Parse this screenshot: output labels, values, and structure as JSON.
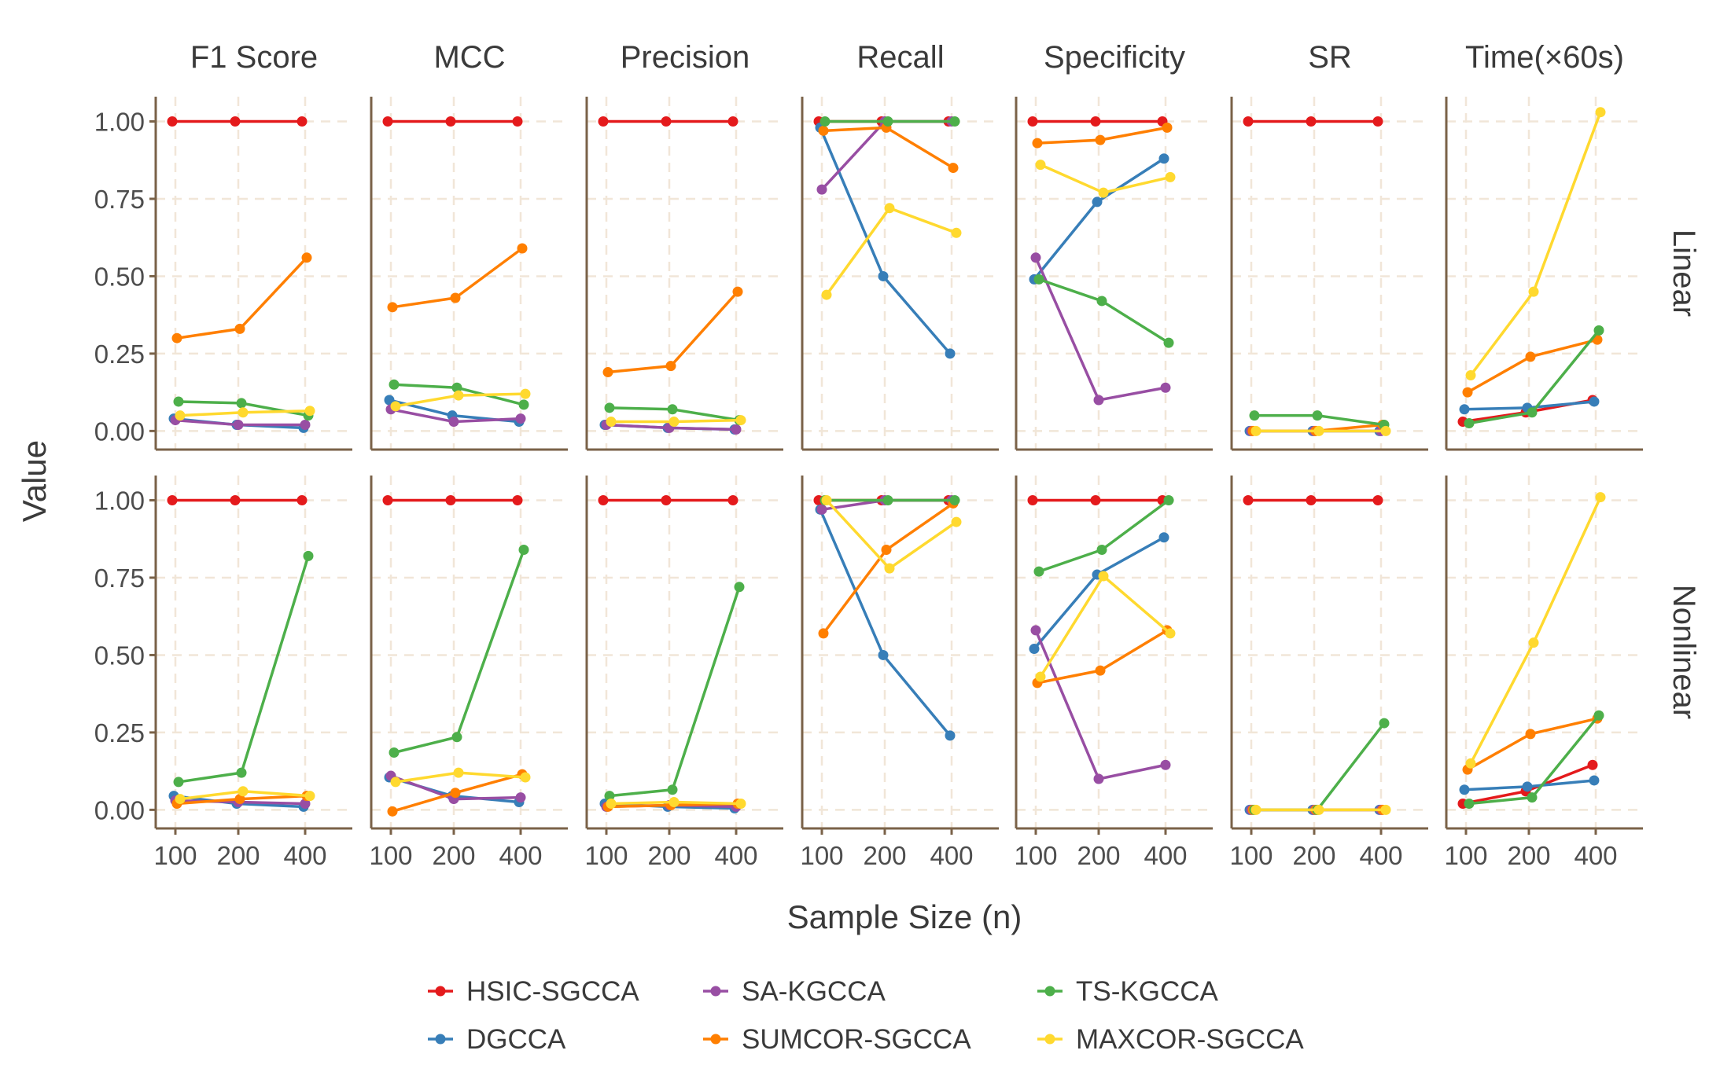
{
  "chart_data": {
    "type": "line",
    "x": [
      100,
      200,
      400
    ],
    "xlabel": "Sample Size (n)",
    "ylabel": "Value",
    "ylim": [
      -0.06,
      1.08
    ],
    "xticks": [
      "100",
      "200",
      "400"
    ],
    "yticks": [
      "0.00",
      "0.25",
      "0.50",
      "0.75",
      "1.00"
    ],
    "grid": true,
    "legend_position": "bottom",
    "panel_columns": [
      "F1 Score",
      "MCC",
      "Precision",
      "Recall",
      "Specificity",
      "SR",
      "Time(×60s)"
    ],
    "panel_rows": [
      "Linear",
      "Nonlinear"
    ],
    "series": [
      {
        "name": "HSIC-SGCCA",
        "color": "#E41A1C"
      },
      {
        "name": "DGCCA",
        "color": "#377EB8"
      },
      {
        "name": "SA-KGCCA",
        "color": "#984EA3"
      },
      {
        "name": "SUMCOR-SGCCA",
        "color": "#FF7F00"
      },
      {
        "name": "TS-KGCCA",
        "color": "#4DAF4A"
      },
      {
        "name": "MAXCOR-SGCCA",
        "color": "#FFD92F"
      }
    ],
    "values": {
      "Linear": {
        "F1 Score": [
          [
            1,
            1,
            1
          ],
          [
            0.04,
            0.02,
            0.01
          ],
          [
            0.035,
            0.02,
            0.02
          ],
          [
            0.3,
            0.33,
            0.56
          ],
          [
            0.095,
            0.09,
            0.05
          ],
          [
            0.05,
            0.06,
            0.065
          ]
        ],
        "MCC": [
          [
            1,
            1,
            1
          ],
          [
            0.1,
            0.05,
            0.03
          ],
          [
            0.07,
            0.03,
            0.04
          ],
          [
            0.4,
            0.43,
            0.59
          ],
          [
            0.15,
            0.14,
            0.085
          ],
          [
            0.08,
            0.115,
            0.12
          ]
        ],
        "Precision": [
          [
            1,
            1,
            1
          ],
          [
            0.02,
            0.01,
            0.005
          ],
          [
            0.02,
            0.01,
            0.005
          ],
          [
            0.19,
            0.21,
            0.45
          ],
          [
            0.075,
            0.07,
            0.035
          ],
          [
            0.03,
            0.03,
            0.035
          ]
        ],
        "Recall": [
          [
            1,
            1,
            1
          ],
          [
            0.98,
            0.5,
            0.25
          ],
          [
            0.78,
            1,
            1
          ],
          [
            0.97,
            0.98,
            0.85
          ],
          [
            1,
            1,
            1
          ],
          [
            0.44,
            0.72,
            0.64
          ]
        ],
        "Specificity": [
          [
            1,
            1,
            1
          ],
          [
            0.49,
            0.74,
            0.88
          ],
          [
            0.56,
            0.1,
            0.14
          ],
          [
            0.93,
            0.94,
            0.98
          ],
          [
            0.49,
            0.42,
            0.285
          ],
          [
            0.86,
            0.77,
            0.82
          ]
        ],
        "SR": [
          [
            1,
            1,
            1
          ],
          [
            0,
            0,
            0
          ],
          [
            0,
            0,
            0
          ],
          [
            0,
            0,
            0.02
          ],
          [
            0.05,
            0.05,
            0.02
          ],
          [
            0,
            0,
            0
          ]
        ],
        "Time(×60s)": [
          [
            0.03,
            0.06,
            0.1
          ],
          [
            0.07,
            0.075,
            0.095
          ],
          [
            null,
            null,
            null
          ],
          [
            0.125,
            0.24,
            0.295
          ],
          [
            0.025,
            0.06,
            0.325
          ],
          [
            0.18,
            0.45,
            1.03
          ]
        ]
      },
      "Nonlinear": {
        "F1 Score": [
          [
            1,
            1,
            1
          ],
          [
            0.045,
            0.02,
            0.01
          ],
          [
            0.03,
            0.025,
            0.02
          ],
          [
            0.02,
            0.035,
            0.045
          ],
          [
            0.09,
            0.12,
            0.82
          ],
          [
            0.035,
            0.06,
            0.045
          ]
        ],
        "MCC": [
          [
            1,
            1,
            1
          ],
          [
            0.105,
            0.045,
            0.025
          ],
          [
            0.11,
            0.035,
            0.04
          ],
          [
            -0.005,
            0.055,
            0.115
          ],
          [
            0.185,
            0.235,
            0.84
          ],
          [
            0.09,
            0.12,
            0.105
          ]
        ],
        "Precision": [
          [
            1,
            1,
            1
          ],
          [
            0.02,
            0.01,
            0.005
          ],
          [
            0.01,
            0.015,
            0.01
          ],
          [
            0.01,
            0.015,
            0.02
          ],
          [
            0.045,
            0.065,
            0.72
          ],
          [
            0.02,
            0.025,
            0.02
          ]
        ],
        "Recall": [
          [
            1,
            1,
            1
          ],
          [
            0.97,
            0.5,
            0.24
          ],
          [
            0.97,
            1,
            1
          ],
          [
            0.57,
            0.84,
            0.99
          ],
          [
            1,
            1,
            1
          ],
          [
            1,
            0.78,
            0.93
          ]
        ],
        "Specificity": [
          [
            1,
            1,
            1
          ],
          [
            0.52,
            0.76,
            0.88
          ],
          [
            0.58,
            0.1,
            0.145
          ],
          [
            0.41,
            0.45,
            0.58
          ],
          [
            0.77,
            0.84,
            1
          ],
          [
            0.43,
            0.755,
            0.57
          ]
        ],
        "SR": [
          [
            1,
            1,
            1
          ],
          [
            0,
            0,
            0
          ],
          [
            0,
            0,
            0
          ],
          [
            0,
            0,
            0
          ],
          [
            0,
            0,
            0.28
          ],
          [
            0,
            0,
            0
          ]
        ],
        "Time(×60s)": [
          [
            0.02,
            0.06,
            0.145
          ],
          [
            0.065,
            0.075,
            0.095
          ],
          [
            null,
            null,
            null
          ],
          [
            0.13,
            0.245,
            0.295
          ],
          [
            0.02,
            0.04,
            0.305
          ],
          [
            0.15,
            0.54,
            1.01
          ]
        ]
      }
    }
  }
}
